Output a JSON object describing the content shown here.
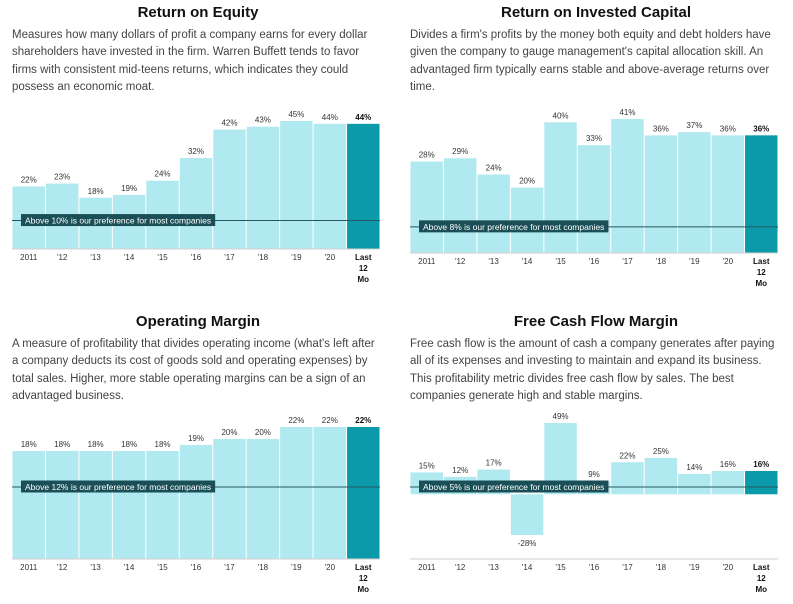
{
  "charts_order": [
    "roe",
    "roic",
    "opm",
    "fcf"
  ],
  "chart_data": [
    {
      "id": "roe",
      "type": "bar",
      "title": "Return on Equity",
      "description": "Measures how many dollars of profit a company earns for every dollar shareholders have invested in the firm. Warren Buffett tends to favor firms with consistent mid-teens returns, which indicates they could possess an economic moat.",
      "categories": [
        "2011",
        "'12",
        "'13",
        "'14",
        "'15",
        "'16",
        "'17",
        "'18",
        "'19",
        "'20",
        "Last 12 Mo"
      ],
      "values": [
        22,
        23,
        18,
        19,
        24,
        32,
        42,
        43,
        45,
        44,
        44
      ],
      "value_labels": [
        "22%",
        "23%",
        "18%",
        "19%",
        "24%",
        "32%",
        "42%",
        "43%",
        "45%",
        "44%",
        "44%"
      ],
      "ylim": [
        0,
        45
      ],
      "threshold": 10,
      "threshold_label": "Above 10% is our preference for most companies"
    },
    {
      "id": "roic",
      "type": "bar",
      "title": "Return on Invested Capital",
      "description": "Divides a firm's profits by the money both equity and debt holders have given the company to gauge management's capital allocation skill. An advantaged firm typically earns stable and above-average returns over time.",
      "categories": [
        "2011",
        "'12",
        "'13",
        "'14",
        "'15",
        "'16",
        "'17",
        "'18",
        "'19",
        "'20",
        "Last 12 Mo"
      ],
      "values": [
        28,
        29,
        24,
        20,
        40,
        33,
        41,
        36,
        37,
        36,
        36
      ],
      "value_labels": [
        "28%",
        "29%",
        "24%",
        "20%",
        "40%",
        "33%",
        "41%",
        "36%",
        "37%",
        "36%",
        "36%"
      ],
      "ylim": [
        0,
        41
      ],
      "threshold": 8,
      "threshold_label": "Above 8% is our preference for most companies"
    },
    {
      "id": "opm",
      "type": "bar",
      "title": "Operating Margin",
      "description": "A measure of profitability that divides operating income (what's left after a company deducts its cost of goods sold and operating expenses) by total sales. Higher, more stable operating margins can be a sign of an advantaged business.",
      "categories": [
        "2011",
        "'12",
        "'13",
        "'14",
        "'15",
        "'16",
        "'17",
        "'18",
        "'19",
        "'20",
        "Last 12 Mo"
      ],
      "values": [
        18,
        18,
        18,
        18,
        18,
        19,
        20,
        20,
        22,
        22,
        22
      ],
      "value_labels": [
        "18%",
        "18%",
        "18%",
        "18%",
        "18%",
        "19%",
        "20%",
        "20%",
        "22%",
        "22%",
        "22%"
      ],
      "ylim": [
        0,
        22
      ],
      "threshold": 12,
      "threshold_label": "Above 12% is our preference for most companies"
    },
    {
      "id": "fcf",
      "type": "bar",
      "title": "Free Cash Flow Margin",
      "description": "Free cash flow is the amount of cash a company generates after paying all of its expenses and investing to maintain and expand its business. This profitability metric divides free cash flow by sales. The best companies generate high and stable margins.",
      "categories": [
        "2011",
        "'12",
        "'13",
        "'14",
        "'15",
        "'16",
        "'17",
        "'18",
        "'19",
        "'20",
        "Last 12 Mo"
      ],
      "values": [
        15,
        12,
        17,
        -28,
        49,
        9,
        22,
        25,
        14,
        16,
        16
      ],
      "value_labels": [
        "15%",
        "12%",
        "17%",
        "-28%",
        "49%",
        "9%",
        "22%",
        "25%",
        "14%",
        "16%",
        "16%"
      ],
      "ylim": [
        -28,
        49
      ],
      "threshold": 5,
      "threshold_label": "Above 5% is our preference for most companies"
    }
  ],
  "colors": {
    "bar": "#b1e9f1",
    "bar_latest": "#0b9aaa",
    "bar_gap": "#ffffff",
    "threshold_line": "#24575e",
    "threshold_box": "#1a4f57",
    "threshold_text": "#ffffff",
    "axis": "#cfcfcf"
  }
}
